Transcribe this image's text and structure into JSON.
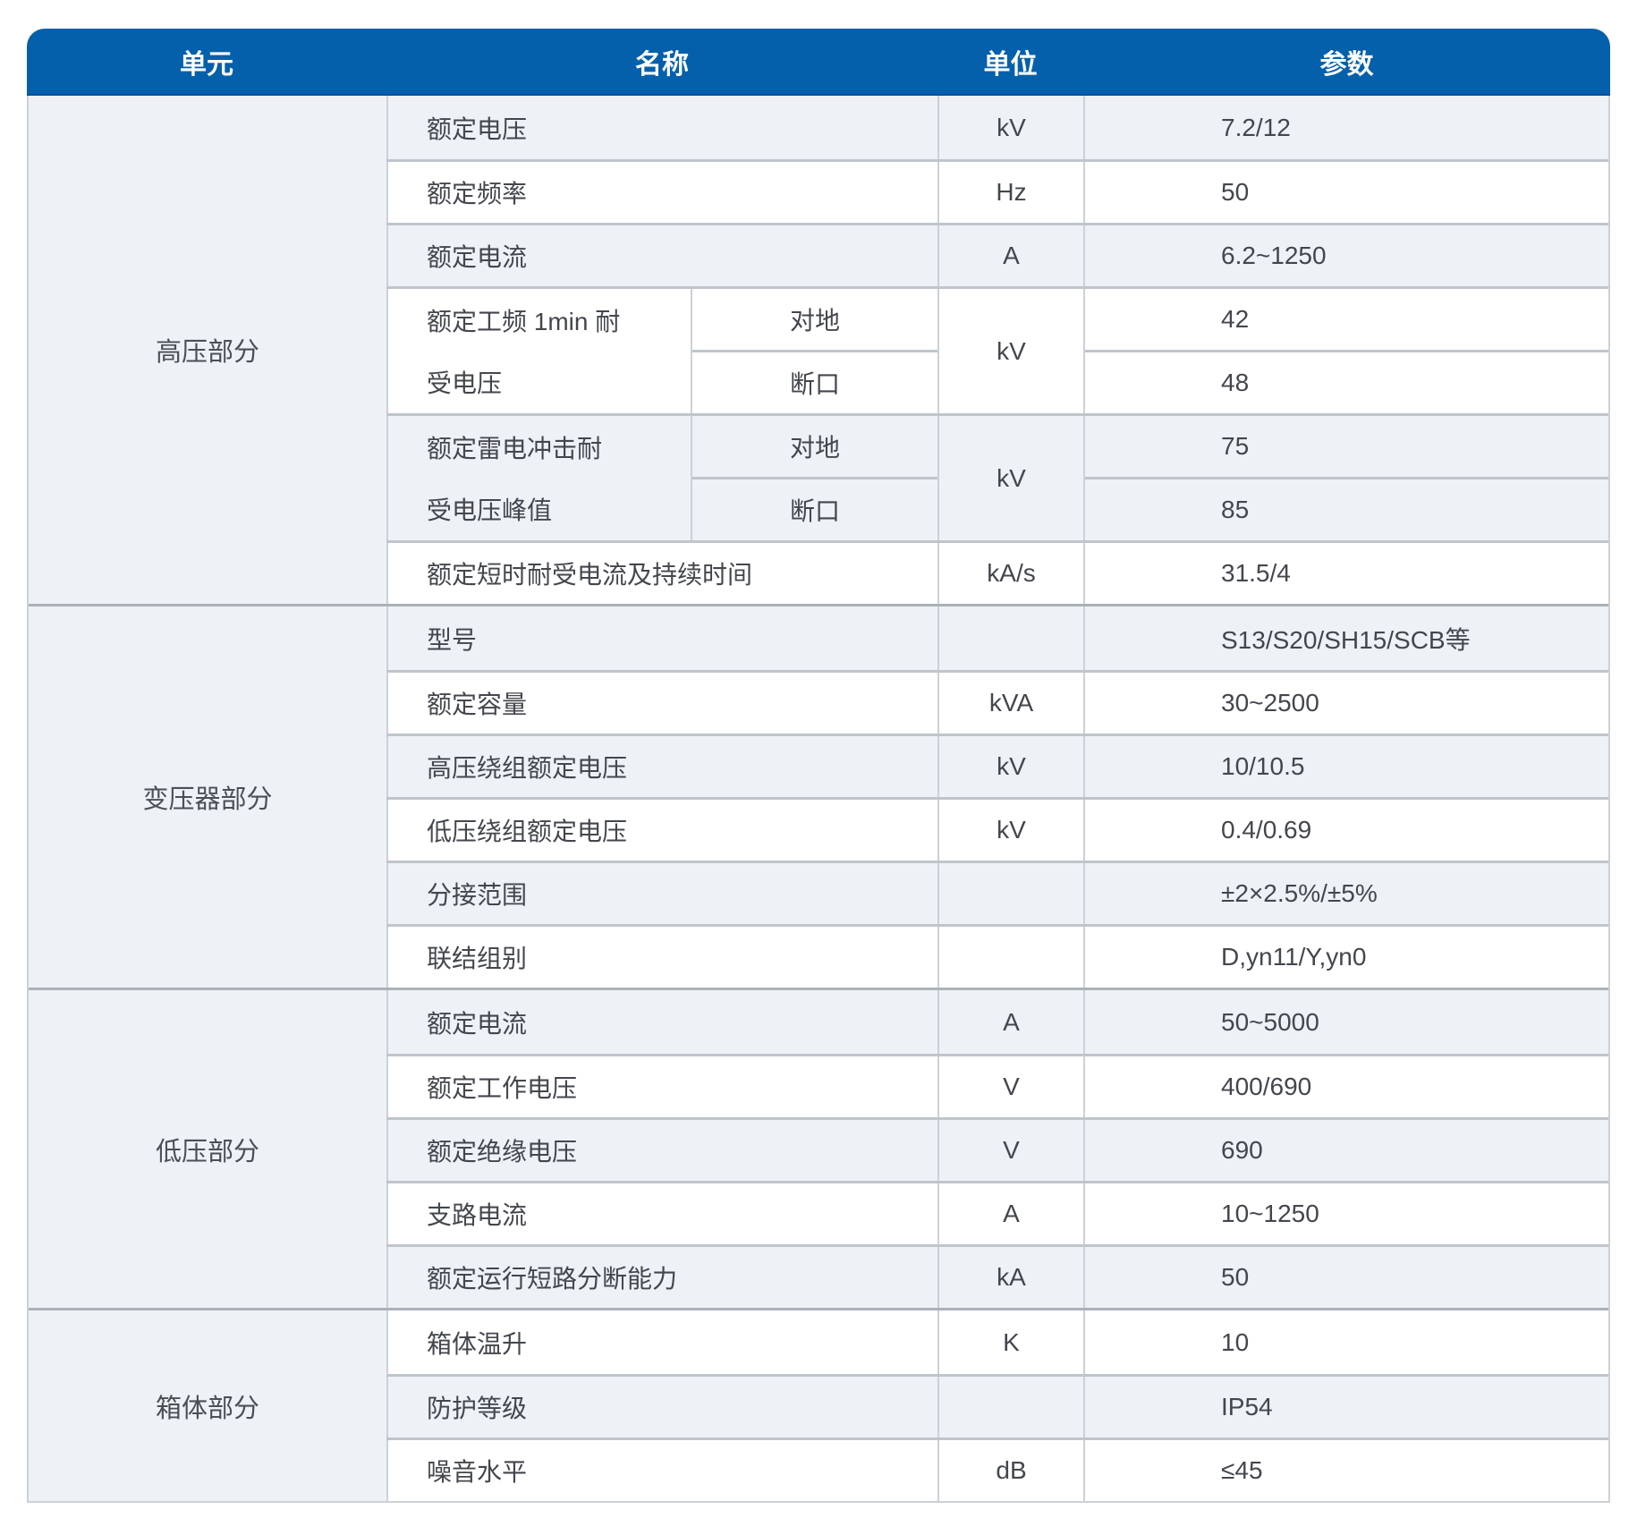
{
  "table": {
    "headers": {
      "unit_group": "单元",
      "name": "名称",
      "unit": "单位",
      "parameter": "参数"
    },
    "accent_color": "#0560ab",
    "light_row_color": "#eef1f6",
    "groups": [
      {
        "label": "高压部分",
        "rows": [
          {
            "name": "额定电压",
            "unit": "kV",
            "param": "7.2/12"
          },
          {
            "name": "额定频率",
            "unit": "Hz",
            "param": "50"
          },
          {
            "name": "额定电流",
            "unit": "A",
            "param": "6.2~1250"
          },
          {
            "name_lines": [
              "额定工频 1min 耐",
              "受电压"
            ],
            "unit": "kV",
            "sub_rows": [
              {
                "label": "对地",
                "param": "42"
              },
              {
                "label": "断口",
                "param": "48"
              }
            ]
          },
          {
            "name_lines": [
              "额定雷电冲击耐",
              "受电压峰值"
            ],
            "unit": "kV",
            "sub_rows": [
              {
                "label": "对地",
                "param": "75"
              },
              {
                "label": "断口",
                "param": "85"
              }
            ]
          },
          {
            "name": "额定短时耐受电流及持续时间",
            "unit": "kA/s",
            "param": "31.5/4"
          }
        ]
      },
      {
        "label": "变压器部分",
        "rows": [
          {
            "name": "型号",
            "unit": "",
            "param": "S13/S20/SH15/SCB等"
          },
          {
            "name": "额定容量",
            "unit": "kVA",
            "param": "30~2500"
          },
          {
            "name": "高压绕组额定电压",
            "unit": "kV",
            "param": "10/10.5"
          },
          {
            "name": "低压绕组额定电压",
            "unit": "kV",
            "param": "0.4/0.69"
          },
          {
            "name": "分接范围",
            "unit": "",
            "param": "±2×2.5%/±5%"
          },
          {
            "name": "联结组别",
            "unit": "",
            "param": "D,yn11/Y,yn0"
          }
        ]
      },
      {
        "label": "低压部分",
        "rows": [
          {
            "name": "额定电流",
            "unit": "A",
            "param": "50~5000"
          },
          {
            "name": "额定工作电压",
            "unit": "V",
            "param": "400/690"
          },
          {
            "name": "额定绝缘电压",
            "unit": "V",
            "param": "690"
          },
          {
            "name": "支路电流",
            "unit": "A",
            "param": "10~1250"
          },
          {
            "name": "额定运行短路分断能力",
            "unit": "kA",
            "param": "50"
          }
        ]
      },
      {
        "label": "箱体部分",
        "rows": [
          {
            "name": "箱体温升",
            "unit": "K",
            "param": "10"
          },
          {
            "name": "防护等级",
            "unit": "",
            "param": "IP54"
          },
          {
            "name": "噪音水平",
            "unit": "dB",
            "param": "≤45"
          }
        ]
      }
    ]
  }
}
